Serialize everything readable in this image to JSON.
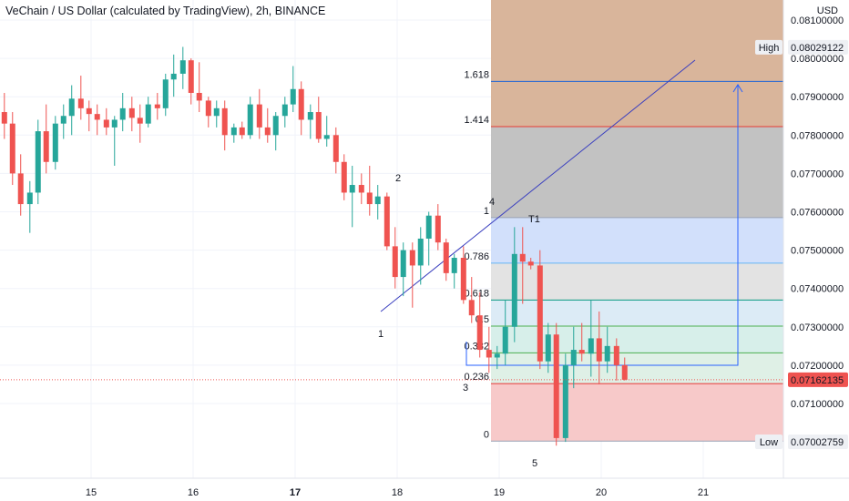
{
  "header": {
    "title": "VeChain / US Dollar (calculated by TradingView), 2h, BINANCE",
    "currency": "USD"
  },
  "chart_data": {
    "type": "candlestick",
    "price_axis": {
      "range": [
        0.0697,
        0.0813
      ],
      "ticks": [
        "0.08100000",
        "0.08000000",
        "0.07900000",
        "0.07800000",
        "0.07700000",
        "0.07600000",
        "0.07500000",
        "0.07400000",
        "0.07300000",
        "0.07200000",
        "0.07100000"
      ]
    },
    "time_axis": {
      "labels": [
        {
          "label": "15",
          "day": 15,
          "bold": false
        },
        {
          "label": "16",
          "day": 16,
          "bold": false
        },
        {
          "label": "17",
          "day": 17,
          "bold": true
        },
        {
          "label": "18",
          "day": 18,
          "bold": false
        },
        {
          "label": "19",
          "day": 19,
          "bold": false
        },
        {
          "label": "20",
          "day": 20,
          "bold": false
        },
        {
          "label": "21",
          "day": 21,
          "bold": false
        }
      ]
    },
    "price_labels": {
      "high": {
        "label": "High",
        "value": "0.08029122"
      },
      "current": {
        "value": "0.07162135"
      },
      "low": {
        "label": "Low",
        "value": "0.07002759"
      }
    },
    "fibonacci": {
      "levels": [
        {
          "label": "0",
          "price": 0.07002,
          "fill": "#f7c9c9",
          "line": "#9aa3b5"
        },
        {
          "label": "0.236",
          "price": 0.07152,
          "fill": "#e8f3e2",
          "line": "#e53935"
        },
        {
          "label": "0.382",
          "price": 0.07232,
          "fill": "#dff0e6",
          "line": "#4caf50"
        },
        {
          "label": "0.5",
          "price": 0.07302,
          "fill": "#d7efea",
          "line": "#4caf50"
        },
        {
          "label": "0.618",
          "price": 0.0737,
          "fill": "#dcebf6",
          "line": "#089981"
        },
        {
          "label": "0.786",
          "price": 0.07466,
          "fill": "#e3e3e3",
          "line": "#64b5f6"
        },
        {
          "label": "1",
          "price": 0.07585,
          "fill": "#d2e0fb",
          "line": "#9aa3b5"
        },
        {
          "label": "1.414",
          "price": 0.07822,
          "fill": "#c2c2c2",
          "line": "#e53935"
        },
        {
          "label": "1.618",
          "price": 0.0794,
          "fill": "#d9b59b",
          "line": "#1e64d6"
        }
      ],
      "level_label_colors": {
        "0": "#787b86",
        "0.236": "#e53935",
        "0.382": "#4caf50",
        "0.5": "#4caf50",
        "0.618": "#089981",
        "0.786": "#64b5f6",
        "1": "#787b86",
        "1.414": "#e53935",
        "1.618": "#2962ff"
      },
      "target_label": "T1"
    },
    "wave_labels": [
      "1",
      "2",
      "3",
      "4",
      "5"
    ],
    "colors": {
      "up": "#26a69a",
      "down": "#ef5350",
      "trendline": "#3a3fbf",
      "arrow": "#2962ff"
    },
    "candles": [
      {
        "day": 14.06,
        "o": 0.07818,
        "h": 0.07895,
        "l": 0.0776,
        "c": 0.0786
      },
      {
        "day": 14.15,
        "o": 0.0786,
        "h": 0.0791,
        "l": 0.0779,
        "c": 0.0783
      },
      {
        "day": 14.23,
        "o": 0.0783,
        "h": 0.0786,
        "l": 0.0767,
        "c": 0.077
      },
      {
        "day": 14.31,
        "o": 0.077,
        "h": 0.0775,
        "l": 0.0759,
        "c": 0.0762
      },
      {
        "day": 14.4,
        "o": 0.0762,
        "h": 0.0768,
        "l": 0.07545,
        "c": 0.0765
      },
      {
        "day": 14.48,
        "o": 0.0765,
        "h": 0.0784,
        "l": 0.0762,
        "c": 0.0781
      },
      {
        "day": 14.56,
        "o": 0.0781,
        "h": 0.0788,
        "l": 0.077,
        "c": 0.0773
      },
      {
        "day": 14.65,
        "o": 0.0773,
        "h": 0.0785,
        "l": 0.0771,
        "c": 0.0783
      },
      {
        "day": 14.73,
        "o": 0.0783,
        "h": 0.0788,
        "l": 0.0779,
        "c": 0.0785
      },
      {
        "day": 14.81,
        "o": 0.0785,
        "h": 0.0793,
        "l": 0.078,
        "c": 0.07895
      },
      {
        "day": 14.9,
        "o": 0.07895,
        "h": 0.07955,
        "l": 0.0784,
        "c": 0.0787
      },
      {
        "day": 14.98,
        "o": 0.0787,
        "h": 0.0789,
        "l": 0.0781,
        "c": 0.07855
      },
      {
        "day": 15.06,
        "o": 0.07855,
        "h": 0.0788,
        "l": 0.078,
        "c": 0.0784
      },
      {
        "day": 15.15,
        "o": 0.0784,
        "h": 0.0787,
        "l": 0.078,
        "c": 0.0782
      },
      {
        "day": 15.23,
        "o": 0.0782,
        "h": 0.0785,
        "l": 0.0772,
        "c": 0.0784
      },
      {
        "day": 15.31,
        "o": 0.0784,
        "h": 0.0791,
        "l": 0.0781,
        "c": 0.0787
      },
      {
        "day": 15.4,
        "o": 0.0787,
        "h": 0.079,
        "l": 0.0781,
        "c": 0.07845
      },
      {
        "day": 15.48,
        "o": 0.07845,
        "h": 0.0788,
        "l": 0.0778,
        "c": 0.0783
      },
      {
        "day": 15.56,
        "o": 0.0783,
        "h": 0.079,
        "l": 0.0782,
        "c": 0.0788
      },
      {
        "day": 15.65,
        "o": 0.0788,
        "h": 0.0791,
        "l": 0.0784,
        "c": 0.0787
      },
      {
        "day": 15.73,
        "o": 0.0787,
        "h": 0.0796,
        "l": 0.0785,
        "c": 0.07945
      },
      {
        "day": 15.81,
        "o": 0.07945,
        "h": 0.0801,
        "l": 0.079,
        "c": 0.0796
      },
      {
        "day": 15.9,
        "o": 0.0796,
        "h": 0.0803,
        "l": 0.0792,
        "c": 0.07995
      },
      {
        "day": 15.98,
        "o": 0.07995,
        "h": 0.08,
        "l": 0.0788,
        "c": 0.0791
      },
      {
        "day": 16.06,
        "o": 0.0791,
        "h": 0.0799,
        "l": 0.0786,
        "c": 0.0789
      },
      {
        "day": 16.15,
        "o": 0.0789,
        "h": 0.079,
        "l": 0.0782,
        "c": 0.0785
      },
      {
        "day": 16.23,
        "o": 0.0785,
        "h": 0.0789,
        "l": 0.0782,
        "c": 0.0787
      },
      {
        "day": 16.31,
        "o": 0.0787,
        "h": 0.0789,
        "l": 0.0776,
        "c": 0.078
      },
      {
        "day": 16.4,
        "o": 0.078,
        "h": 0.0783,
        "l": 0.0778,
        "c": 0.0782
      },
      {
        "day": 16.48,
        "o": 0.0782,
        "h": 0.07835,
        "l": 0.0779,
        "c": 0.078
      },
      {
        "day": 16.56,
        "o": 0.078,
        "h": 0.079,
        "l": 0.0779,
        "c": 0.0788
      },
      {
        "day": 16.65,
        "o": 0.0788,
        "h": 0.0792,
        "l": 0.0779,
        "c": 0.0782
      },
      {
        "day": 16.73,
        "o": 0.0782,
        "h": 0.0787,
        "l": 0.0778,
        "c": 0.078
      },
      {
        "day": 16.81,
        "o": 0.078,
        "h": 0.0786,
        "l": 0.0776,
        "c": 0.0785
      },
      {
        "day": 16.9,
        "o": 0.0785,
        "h": 0.079,
        "l": 0.0782,
        "c": 0.0788
      },
      {
        "day": 16.98,
        "o": 0.0788,
        "h": 0.0798,
        "l": 0.0786,
        "c": 0.0792
      },
      {
        "day": 17.06,
        "o": 0.0792,
        "h": 0.0794,
        "l": 0.078,
        "c": 0.0784
      },
      {
        "day": 17.15,
        "o": 0.0784,
        "h": 0.0788,
        "l": 0.0779,
        "c": 0.0786
      },
      {
        "day": 17.23,
        "o": 0.0786,
        "h": 0.079,
        "l": 0.0778,
        "c": 0.0779
      },
      {
        "day": 17.31,
        "o": 0.0779,
        "h": 0.0785,
        "l": 0.0777,
        "c": 0.078
      },
      {
        "day": 17.4,
        "o": 0.078,
        "h": 0.0782,
        "l": 0.077,
        "c": 0.0773
      },
      {
        "day": 17.48,
        "o": 0.0773,
        "h": 0.0775,
        "l": 0.0763,
        "c": 0.0765
      },
      {
        "day": 17.56,
        "o": 0.0765,
        "h": 0.0772,
        "l": 0.0756,
        "c": 0.0767
      },
      {
        "day": 17.65,
        "o": 0.0767,
        "h": 0.077,
        "l": 0.0762,
        "c": 0.0765
      },
      {
        "day": 17.73,
        "o": 0.0765,
        "h": 0.0772,
        "l": 0.0759,
        "c": 0.0762
      },
      {
        "day": 17.81,
        "o": 0.0762,
        "h": 0.0767,
        "l": 0.0758,
        "c": 0.0764
      },
      {
        "day": 17.9,
        "o": 0.0764,
        "h": 0.0765,
        "l": 0.075,
        "c": 0.0751
      },
      {
        "day": 17.98,
        "o": 0.0751,
        "h": 0.0756,
        "l": 0.074,
        "c": 0.0743
      },
      {
        "day": 18.06,
        "o": 0.0743,
        "h": 0.0752,
        "l": 0.0738,
        "c": 0.075
      },
      {
        "day": 18.15,
        "o": 0.075,
        "h": 0.0752,
        "l": 0.0735,
        "c": 0.0746
      },
      {
        "day": 18.23,
        "o": 0.0746,
        "h": 0.0756,
        "l": 0.0741,
        "c": 0.0753
      },
      {
        "day": 18.31,
        "o": 0.0753,
        "h": 0.076,
        "l": 0.0746,
        "c": 0.0759
      },
      {
        "day": 18.4,
        "o": 0.0759,
        "h": 0.0762,
        "l": 0.075,
        "c": 0.0752
      },
      {
        "day": 18.48,
        "o": 0.0752,
        "h": 0.0753,
        "l": 0.0742,
        "c": 0.0744
      },
      {
        "day": 18.56,
        "o": 0.0744,
        "h": 0.0749,
        "l": 0.074,
        "c": 0.0748
      },
      {
        "day": 18.65,
        "o": 0.0748,
        "h": 0.0751,
        "l": 0.0736,
        "c": 0.0737
      },
      {
        "day": 18.73,
        "o": 0.0737,
        "h": 0.0743,
        "l": 0.0731,
        "c": 0.0733
      },
      {
        "day": 18.81,
        "o": 0.0733,
        "h": 0.0739,
        "l": 0.0722,
        "c": 0.0724
      },
      {
        "day": 18.9,
        "o": 0.0724,
        "h": 0.073,
        "l": 0.0718,
        "c": 0.0722
      },
      {
        "day": 18.98,
        "o": 0.0722,
        "h": 0.0725,
        "l": 0.0719,
        "c": 0.0723
      },
      {
        "day": 19.06,
        "o": 0.0723,
        "h": 0.0737,
        "l": 0.072,
        "c": 0.073
      },
      {
        "day": 19.15,
        "o": 0.073,
        "h": 0.0756,
        "l": 0.0726,
        "c": 0.0749
      },
      {
        "day": 19.23,
        "o": 0.0749,
        "h": 0.0756,
        "l": 0.0736,
        "c": 0.0747
      },
      {
        "day": 19.31,
        "o": 0.0747,
        "h": 0.0748,
        "l": 0.0745,
        "c": 0.0746
      },
      {
        "day": 19.4,
        "o": 0.0746,
        "h": 0.075,
        "l": 0.0719,
        "c": 0.0721
      },
      {
        "day": 19.48,
        "o": 0.0721,
        "h": 0.0731,
        "l": 0.0718,
        "c": 0.0728
      },
      {
        "day": 19.56,
        "o": 0.0728,
        "h": 0.0731,
        "l": 0.0699,
        "c": 0.0701
      },
      {
        "day": 19.65,
        "o": 0.0701,
        "h": 0.0723,
        "l": 0.07,
        "c": 0.072
      },
      {
        "day": 19.73,
        "o": 0.072,
        "h": 0.073,
        "l": 0.0714,
        "c": 0.0724
      },
      {
        "day": 19.81,
        "o": 0.0724,
        "h": 0.0731,
        "l": 0.0721,
        "c": 0.0723
      },
      {
        "day": 19.9,
        "o": 0.0723,
        "h": 0.0737,
        "l": 0.0717,
        "c": 0.0727
      },
      {
        "day": 19.98,
        "o": 0.0727,
        "h": 0.0734,
        "l": 0.0715,
        "c": 0.0721
      },
      {
        "day": 20.06,
        "o": 0.0721,
        "h": 0.073,
        "l": 0.0718,
        "c": 0.0725
      },
      {
        "day": 20.15,
        "o": 0.0725,
        "h": 0.0727,
        "l": 0.0716,
        "c": 0.072
      },
      {
        "day": 20.23,
        "o": 0.072,
        "h": 0.0722,
        "l": 0.0716,
        "c": 0.07162
      }
    ]
  }
}
